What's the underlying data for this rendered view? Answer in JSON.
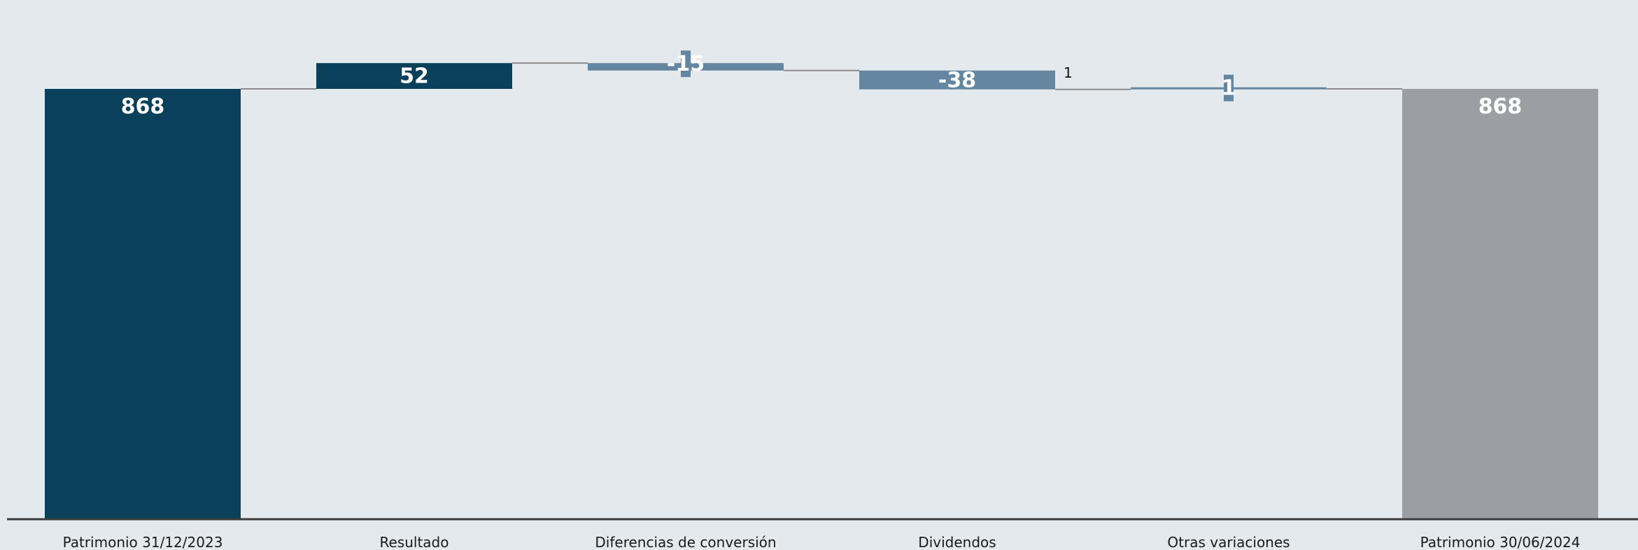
{
  "chart_data": {
    "type": "waterfall",
    "categories": [
      "Patrimonio 31/12/2023",
      "Resultado",
      "Diferencias de conversión",
      "Dividendos",
      "Otras variaciones",
      "Patrimonio 30/06/2024"
    ],
    "values": [
      868,
      52,
      -15,
      -38,
      1,
      868
    ],
    "labels": [
      "868",
      "52",
      "-15",
      "-38",
      "1",
      "868"
    ],
    "kinds": [
      "total",
      "increase",
      "decrease",
      "decrease",
      "increase",
      "total"
    ],
    "annotations": [
      {
        "text": "1",
        "category": "Dividendos"
      }
    ],
    "ylim": [
      0,
      1045
    ],
    "grid": false,
    "legend": "none",
    "colors": {
      "total_start": "#0a4059",
      "increase": "#0a4059",
      "decrease": "#6586a0",
      "small_increase": "#6586a0",
      "total_end": "#9b9ea3",
      "connector": "#8a8a8a",
      "baseline": "#3d3d3d",
      "value_text": "#ffffff",
      "category_text": "#1a1a1a",
      "background": "#e4e9ee"
    }
  }
}
